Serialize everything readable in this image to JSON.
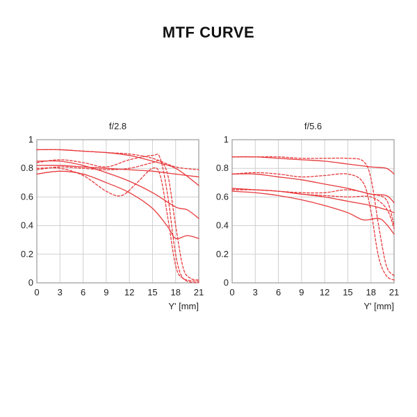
{
  "title": "MTF CURVE",
  "colors": {
    "curve": "#e8383b",
    "grid": "#cfcfcf",
    "frame": "#9a9a9a"
  },
  "chart_data": [
    {
      "type": "line",
      "title": "f/2.8",
      "xlabel": "Y' [mm]",
      "xlim": [
        0,
        21
      ],
      "ylim": [
        0,
        1
      ],
      "xticks": [
        0,
        3,
        6,
        9,
        12,
        15,
        18,
        21
      ],
      "yticks": [
        0,
        0.2,
        0.4,
        0.6,
        0.8,
        1
      ],
      "grid": true,
      "series": [
        {
          "dash": false,
          "x": [
            0,
            3,
            6,
            9,
            12,
            15,
            18,
            21
          ],
          "y": [
            0.93,
            0.93,
            0.92,
            0.91,
            0.89,
            0.85,
            0.8,
            0.68
          ]
        },
        {
          "dash": false,
          "x": [
            0,
            3,
            6,
            9,
            12,
            15,
            18,
            21
          ],
          "y": [
            0.82,
            0.82,
            0.81,
            0.8,
            0.79,
            0.78,
            0.76,
            0.74
          ]
        },
        {
          "dash": false,
          "x": [
            0,
            3,
            6,
            9,
            12,
            15,
            18,
            19.5,
            21
          ],
          "y": [
            0.85,
            0.85,
            0.82,
            0.77,
            0.71,
            0.63,
            0.53,
            0.51,
            0.45
          ]
        },
        {
          "dash": false,
          "x": [
            0,
            3,
            6,
            9,
            12,
            15,
            17,
            18,
            19.5,
            21
          ],
          "y": [
            0.76,
            0.78,
            0.76,
            0.7,
            0.63,
            0.52,
            0.39,
            0.31,
            0.33,
            0.31
          ]
        },
        {
          "dash": true,
          "x": [
            0,
            3,
            6,
            9,
            12,
            15,
            18,
            21
          ],
          "y": [
            0.93,
            0.93,
            0.92,
            0.91,
            0.9,
            0.87,
            0.81,
            0.79
          ]
        },
        {
          "dash": true,
          "x": [
            0,
            3,
            6,
            9,
            12,
            15,
            16,
            17,
            18,
            19,
            21
          ],
          "y": [
            0.84,
            0.86,
            0.84,
            0.81,
            0.86,
            0.89,
            0.87,
            0.6,
            0.2,
            0.03,
            0.0
          ]
        },
        {
          "dash": true,
          "x": [
            0,
            3,
            6,
            9,
            11,
            13,
            15,
            16,
            17,
            18,
            19,
            21
          ],
          "y": [
            0.8,
            0.8,
            0.75,
            0.64,
            0.61,
            0.7,
            0.8,
            0.75,
            0.45,
            0.12,
            0.03,
            0.01
          ]
        },
        {
          "dash": true,
          "x": [
            0,
            3,
            6,
            9,
            12,
            15,
            16,
            17,
            18,
            19,
            20,
            21
          ],
          "y": [
            0.79,
            0.81,
            0.8,
            0.79,
            0.8,
            0.84,
            0.85,
            0.75,
            0.4,
            0.1,
            0.03,
            0.02
          ]
        }
      ]
    },
    {
      "type": "line",
      "title": "f/5.6",
      "xlabel": "Y' [mm]",
      "xlim": [
        0,
        21
      ],
      "ylim": [
        0,
        1
      ],
      "xticks": [
        0,
        3,
        6,
        9,
        12,
        15,
        18,
        21
      ],
      "yticks": [
        0,
        0.2,
        0.4,
        0.6,
        0.8,
        1
      ],
      "grid": true,
      "series": [
        {
          "dash": false,
          "x": [
            0,
            3,
            6,
            9,
            12,
            15,
            18,
            20,
            21
          ],
          "y": [
            0.88,
            0.88,
            0.87,
            0.86,
            0.85,
            0.83,
            0.81,
            0.8,
            0.76
          ]
        },
        {
          "dash": false,
          "x": [
            0,
            3,
            6,
            9,
            12,
            15,
            18,
            20,
            21
          ],
          "y": [
            0.76,
            0.76,
            0.74,
            0.72,
            0.69,
            0.66,
            0.62,
            0.61,
            0.56
          ]
        },
        {
          "dash": false,
          "x": [
            0,
            3,
            6,
            9,
            12,
            15,
            18,
            20,
            21
          ],
          "y": [
            0.66,
            0.65,
            0.64,
            0.62,
            0.6,
            0.57,
            0.54,
            0.51,
            0.49
          ]
        },
        {
          "dash": false,
          "x": [
            0,
            3,
            6,
            9,
            12,
            15,
            17,
            19,
            20,
            21
          ],
          "y": [
            0.64,
            0.63,
            0.61,
            0.58,
            0.54,
            0.49,
            0.44,
            0.45,
            0.41,
            0.34
          ]
        },
        {
          "dash": true,
          "x": [
            0,
            3,
            6,
            9,
            12,
            15,
            17,
            18,
            19,
            20,
            21
          ],
          "y": [
            0.88,
            0.88,
            0.88,
            0.87,
            0.87,
            0.87,
            0.85,
            0.73,
            0.4,
            0.12,
            0.05
          ]
        },
        {
          "dash": true,
          "x": [
            0,
            3,
            6,
            9,
            12,
            15,
            17,
            18,
            19,
            20,
            21
          ],
          "y": [
            0.76,
            0.77,
            0.76,
            0.74,
            0.75,
            0.76,
            0.7,
            0.5,
            0.18,
            0.05,
            0.02
          ]
        },
        {
          "dash": true,
          "x": [
            0,
            3,
            6,
            9,
            12,
            15,
            18,
            20,
            21
          ],
          "y": [
            0.65,
            0.65,
            0.64,
            0.63,
            0.63,
            0.65,
            0.62,
            0.58,
            0.4
          ]
        },
        {
          "dash": true,
          "x": [
            0,
            3,
            6,
            9,
            12,
            15,
            18,
            20,
            21
          ],
          "y": [
            0.65,
            0.65,
            0.64,
            0.62,
            0.61,
            0.6,
            0.6,
            0.52,
            0.38
          ]
        }
      ]
    }
  ]
}
